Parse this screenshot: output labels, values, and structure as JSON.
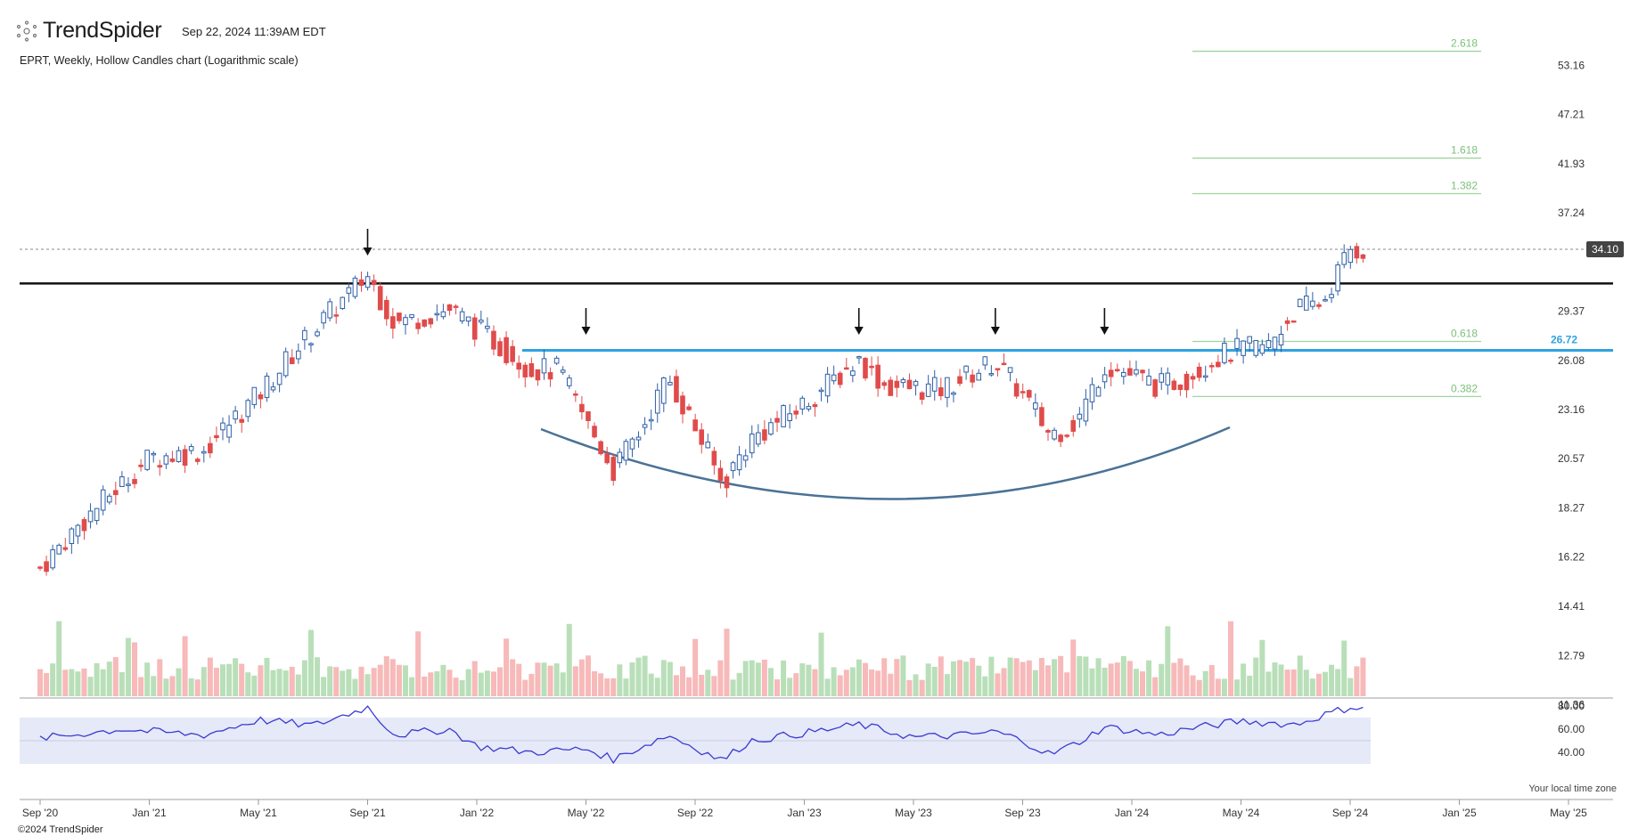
{
  "header": {
    "brand": "TrendSpider",
    "timestamp": "Sep 22, 2024 11:39AM EDT",
    "subtitle": "EPRT, Weekly, Hollow Candles chart (Logarithmic scale)"
  },
  "footer": {
    "copyright": "©2024 TrendSpider",
    "timezone_note": "Your local time zone"
  },
  "colors": {
    "up": "#2f5fa6",
    "down": "#e04b4b",
    "vol_up": "#b9dfb9",
    "vol_down": "#f7b9b9",
    "resistance_line": "#111111",
    "neckline": "#2ea3e0",
    "fib": "#9fd59f",
    "rsi_line": "#3a3bd1",
    "rsi_band": "#e6e9f8",
    "cup_curve": "#4a7295"
  },
  "chart_data": {
    "type": "candlestick",
    "symbol": "EPRT",
    "interval": "Weekly",
    "style": "Hollow Candles",
    "scale": "log",
    "x_ticks": [
      "Sep '20",
      "Jan '21",
      "May '21",
      "Sep '21",
      "Jan '22",
      "May '22",
      "Sep '22",
      "Jan '23",
      "May '23",
      "Sep '23",
      "Jan '24",
      "May '24",
      "Sep '24",
      "Jan '25",
      "May '25"
    ],
    "price_ticks": [
      53.16,
      47.21,
      41.93,
      37.24,
      29.37,
      26.08,
      23.16,
      20.57,
      18.27,
      16.22,
      14.41,
      12.79,
      11.36
    ],
    "rsi_ticks": [
      80.0,
      60.0,
      40.0
    ],
    "last_price": 34.1,
    "resistance_level": 31.4,
    "neckline": {
      "label": "26.72",
      "value": 26.72
    },
    "fib_levels": [
      {
        "label": "2.618",
        "value": 55.0
      },
      {
        "label": "1.618",
        "value": 42.5
      },
      {
        "label": "1.382",
        "value": 39.0
      },
      {
        "label": "0.618",
        "value": 27.3
      },
      {
        "label": "0.382",
        "value": 23.9
      }
    ],
    "arrow_markers": [
      "Sep '21",
      "May '22",
      "Mar '23",
      "Aug '23",
      "Dec '23"
    ],
    "price_anchors": [
      [
        "Sep '20",
        15.8
      ],
      [
        "Jan '21",
        20.6
      ],
      [
        "Mar '21",
        21.0
      ],
      [
        "May '21",
        24.0
      ],
      [
        "Jul '21",
        28.0
      ],
      [
        "Sep '21",
        32.0
      ],
      [
        "Oct '21",
        28.5
      ],
      [
        "Dec '21",
        29.5
      ],
      [
        "Mar '22",
        25.5
      ],
      [
        "Apr '22",
        25.5
      ],
      [
        "May '22",
        22.5
      ],
      [
        "Jun '22",
        20.0
      ],
      [
        "Jul '22",
        22.0
      ],
      [
        "Aug '22",
        25.0
      ],
      [
        "Oct '22",
        19.3
      ],
      [
        "Nov '22",
        21.5
      ],
      [
        "Jan '23",
        23.5
      ],
      [
        "Mar '23",
        26.1
      ],
      [
        "Apr '23",
        24.5
      ],
      [
        "Jun '23",
        24.3
      ],
      [
        "Aug '23",
        26.0
      ],
      [
        "Sep '23",
        24.0
      ],
      [
        "Oct '23",
        21.8
      ],
      [
        "Nov '23",
        22.5
      ],
      [
        "Dec '23",
        25.8
      ],
      [
        "Feb '24",
        24.5
      ],
      [
        "Mar '24",
        25.0
      ],
      [
        "Apr '24",
        26.2
      ],
      [
        "May '24",
        26.8
      ],
      [
        "Jun '24",
        27.0
      ],
      [
        "Jul '24",
        29.5
      ],
      [
        "Aug '24",
        30.0
      ],
      [
        "Sep '24",
        34.1
      ]
    ],
    "rsi_anchors": [
      [
        "Sep '20",
        52
      ],
      [
        "Dec '20",
        60
      ],
      [
        "Jan '21",
        58
      ],
      [
        "Mar '21",
        55
      ],
      [
        "May '21",
        68
      ],
      [
        "Jul '21",
        63
      ],
      [
        "Sep '21",
        79
      ],
      [
        "Oct '21",
        55
      ],
      [
        "Dec '21",
        60
      ],
      [
        "Jan '22",
        45
      ],
      [
        "Mar '22",
        40
      ],
      [
        "May '22",
        43
      ],
      [
        "Jun '22",
        34
      ],
      [
        "Aug '22",
        55
      ],
      [
        "Oct '22",
        33
      ],
      [
        "Nov '22",
        50
      ],
      [
        "Feb '23",
        60
      ],
      [
        "Mar '23",
        64
      ],
      [
        "May '23",
        53
      ],
      [
        "Jul '23",
        55
      ],
      [
        "Aug '23",
        58
      ],
      [
        "Sep '23",
        50
      ],
      [
        "Oct '23",
        38
      ],
      [
        "Nov '23",
        48
      ],
      [
        "Dec '23",
        62
      ],
      [
        "Feb '24",
        55
      ],
      [
        "Mar '24",
        60
      ],
      [
        "May '24",
        67
      ],
      [
        "Jul '24",
        64
      ],
      [
        "Aug '24",
        72
      ],
      [
        "Sep '24",
        79
      ]
    ]
  }
}
